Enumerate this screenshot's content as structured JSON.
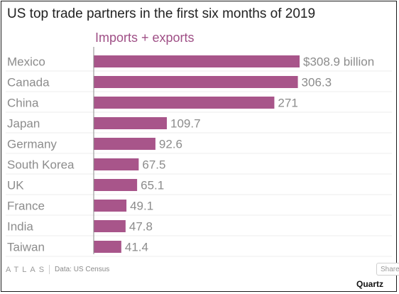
{
  "chart_data": {
    "type": "bar",
    "orientation": "horizontal",
    "title": "US top trade partners in the first six months of 2019",
    "legend": "Imports + exports",
    "categories": [
      "Mexico",
      "Canada",
      "China",
      "Japan",
      "Germany",
      "South Korea",
      "UK",
      "France",
      "India",
      "Taiwan"
    ],
    "series": [
      {
        "name": "Imports + exports",
        "values": [
          308.9,
          306.3,
          271,
          109.7,
          92.6,
          67.5,
          65.1,
          49.1,
          47.8,
          41.4
        ]
      }
    ],
    "value_labels": [
      "$308.9 billion",
      "306.3",
      "271",
      "109.7",
      "92.6",
      "67.5",
      "65.1",
      "49.1",
      "47.8",
      "41.4"
    ],
    "unit": "$ billion",
    "xlim": [
      0,
      308.9
    ],
    "grid": true,
    "bar_color": "#a8558a"
  },
  "footer": {
    "logo": "ATLAS",
    "source": "Data: US Census",
    "share_label": "Share",
    "brand": "Quartz"
  }
}
